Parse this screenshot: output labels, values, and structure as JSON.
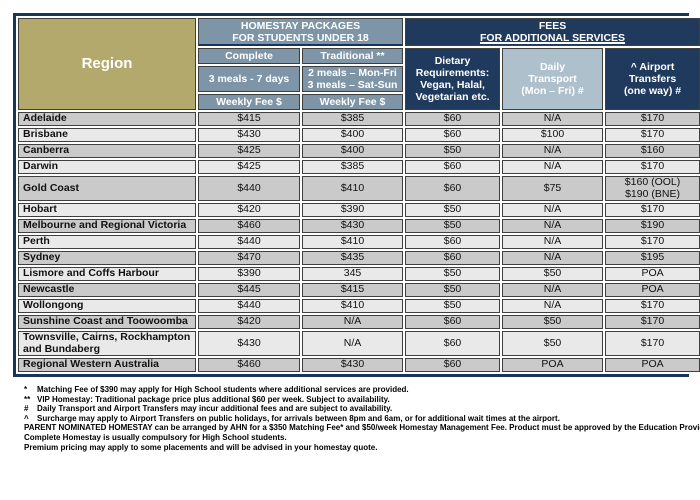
{
  "colors": {
    "navy": "#1F3A5D",
    "slate_blue": "#7E95A8",
    "light_slate": "#AFC0CD",
    "gold": "#B3A96D",
    "row_gray": "#CACACA",
    "row_light": "#E9E9E9",
    "cell_border": "#3F3F3F",
    "table_outline": "#17365C"
  },
  "table": {
    "header": {
      "region": "Region",
      "homestay_group_line1": "HOMESTAY PACKAGES",
      "homestay_group_line2": "FOR STUDENTS UNDER 18",
      "fees_group_line1": "FEES",
      "fees_group_line2": "FOR ADDITIONAL SERVICES",
      "complete": "Complete",
      "traditional": "Traditional **",
      "complete_meals": "3 meals - 7 days",
      "traditional_meals": "2 meals – Mon-Fri\n3 meals – Sat-Sun",
      "complete_weekly_fee": "Weekly Fee $",
      "traditional_weekly_fee": "Weekly Fee $",
      "dietary": "Dietary\nRequirements:\nVegan, Halal,\nVegetarian etc.",
      "daily_transport": "Daily\nTransport\n(Mon – Fri) #",
      "airport_transfers": "^ Airport\nTransfers\n(one way) #"
    },
    "rows": [
      {
        "region": "Adelaide",
        "complete": "$415",
        "traditional": "$385",
        "dietary": "$60",
        "transport": "N/A",
        "airport": "$170"
      },
      {
        "region": "Brisbane",
        "complete": "$430",
        "traditional": "$400",
        "dietary": "$60",
        "transport": "$100",
        "airport": "$170"
      },
      {
        "region": "Canberra",
        "complete": "$425",
        "traditional": "$400",
        "dietary": "$50",
        "transport": "N/A",
        "airport": "$160"
      },
      {
        "region": "Darwin",
        "complete": "$425",
        "traditional": "$385",
        "dietary": "$60",
        "transport": "N/A",
        "airport": "$170"
      },
      {
        "region": "Gold Coast",
        "complete": "$440",
        "traditional": "$410",
        "dietary": "$60",
        "transport": "$75",
        "airport": "$160 (OOL)\n$190 (BNE)"
      },
      {
        "region": "Hobart",
        "complete": "$420",
        "traditional": "$390",
        "dietary": "$50",
        "transport": "N/A",
        "airport": "$170"
      },
      {
        "region": "Melbourne and Regional Victoria",
        "complete": "$460",
        "traditional": "$430",
        "dietary": "$50",
        "transport": "N/A",
        "airport": "$190"
      },
      {
        "region": "Perth",
        "complete": "$440",
        "traditional": "$410",
        "dietary": "$60",
        "transport": "N/A",
        "airport": "$170"
      },
      {
        "region": "Sydney",
        "complete": "$470",
        "traditional": "$435",
        "dietary": "$60",
        "transport": "N/A",
        "airport": "$195"
      },
      {
        "region": "Lismore and Coffs Harbour",
        "complete": "$390",
        "traditional": "345",
        "dietary": "$50",
        "transport": "$50",
        "airport": "POA"
      },
      {
        "region": "Newcastle",
        "complete": "$445",
        "traditional": "$415",
        "dietary": "$50",
        "transport": "N/A",
        "airport": "POA"
      },
      {
        "region": "Wollongong",
        "complete": "$440",
        "traditional": "$410",
        "dietary": "$50",
        "transport": "N/A",
        "airport": "$170"
      },
      {
        "region": "Sunshine Coast and Toowoomba",
        "complete": "$420",
        "traditional": "N/A",
        "dietary": "$60",
        "transport": "$50",
        "airport": "$170"
      },
      {
        "region": "Townsville, Cairns, Rockhampton and Bundaberg",
        "complete": "$430",
        "traditional": "N/A",
        "dietary": "$60",
        "transport": "$50",
        "airport": "$170"
      },
      {
        "region": "Regional Western Australia",
        "complete": "$460",
        "traditional": "$430",
        "dietary": "$60",
        "transport": "POA",
        "airport": "POA"
      }
    ]
  },
  "footnotes": [
    {
      "marker": "*",
      "text": "Matching Fee of $390 may apply for High School students where additional services are provided."
    },
    {
      "marker": "**",
      "text": "VIP Homestay: Traditional package price plus additional $60 per week. Subject to availability."
    },
    {
      "marker": "#",
      "text": "Daily Transport and Airport Transfers may incur additional fees and are subject to availability."
    },
    {
      "marker": "^",
      "text": "Surcharge may apply to Airport Transfers on public holidays, for arrivals between 8pm and 6am, or for additional wait times at the airport."
    },
    {
      "marker": "",
      "text": "PARENT NOMINATED HOMESTAY can be arranged by AHN for a $350 Matching Fee* and $50/week Homestay Management Fee. Product must be approved by the Education Provider."
    },
    {
      "marker": "",
      "text": "Complete Homestay is usually compulsory for High School students."
    },
    {
      "marker": "",
      "text": "Premium pricing may apply to some placements and will be advised in your homestay quote."
    }
  ]
}
